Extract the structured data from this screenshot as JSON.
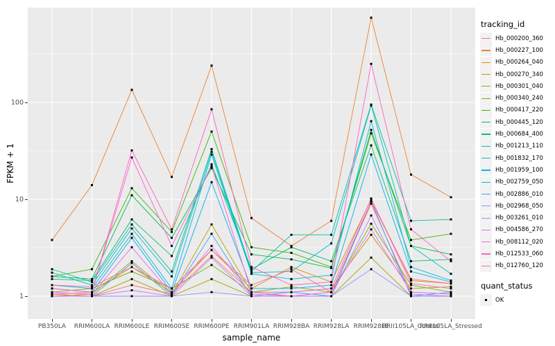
{
  "figure": {
    "background": "#FFFFFF",
    "panel_background": "#EBEBEB",
    "grid_color": "#FFFFFF",
    "tick_label_color": "#4D4D4D",
    "point_color": "#000000",
    "point_shape": "filled-square"
  },
  "legend": {
    "tracking_title": "tracking_id",
    "quant_title": "quant_status",
    "quant_items": [
      {
        "label": "OK",
        "marker": "black-square"
      }
    ]
  },
  "chart_data": {
    "type": "line",
    "title": "",
    "xlabel": "sample_name",
    "ylabel": "FPKM + 1",
    "y_scale": "log10",
    "y_ticks": [
      1,
      10,
      100
    ],
    "ylim": [
      0.59,
      930
    ],
    "grid": true,
    "legend_position": "right",
    "categories": [
      "PB350LA",
      "RRIM600LA",
      "RRIM600LE",
      "RRIM600SE",
      "RRIM600PE",
      "RRIM901LA",
      "RRIM928BA",
      "RRIM928LA",
      "RRIM928LE",
      "RRII105LA_Control",
      "RRII105LA_Stressed"
    ],
    "series": [
      {
        "name": "Hb_000200_360",
        "color": "#F8766D",
        "values": [
          1.05,
          1.0,
          1.3,
          1.05,
          2.6,
          1.1,
          1.0,
          1.1,
          9.0,
          1.1,
          1.05
        ]
      },
      {
        "name": "Hb_000227_100",
        "color": "#EA8331",
        "values": [
          3.8,
          14,
          135,
          17,
          240,
          6.4,
          3.3,
          6.0,
          750,
          18,
          10.5
        ]
      },
      {
        "name": "Hb_000264_040",
        "color": "#D89000",
        "values": [
          1.2,
          1.1,
          2.0,
          1.1,
          3.0,
          1.2,
          2.0,
          1.4,
          10,
          1.45,
          1.35
        ]
      },
      {
        "name": "Hb_000270_340",
        "color": "#C09B00",
        "values": [
          1.0,
          1.05,
          2.3,
          1.05,
          5.5,
          1.1,
          1.1,
          1.2,
          4.3,
          1.2,
          1.25
        ]
      },
      {
        "name": "Hb_000301_040",
        "color": "#A3A500",
        "values": [
          1.0,
          1.0,
          1.5,
          1.0,
          1.5,
          1.0,
          1.0,
          1.0,
          2.5,
          1.0,
          1.0
        ]
      },
      {
        "name": "Hb_000340_240",
        "color": "#7CAE00",
        "values": [
          1.1,
          1.2,
          1.8,
          1.2,
          2.1,
          1.1,
          1.25,
          1.1,
          5.6,
          1.3,
          1.1
        ]
      },
      {
        "name": "Hb_000417_220",
        "color": "#39B600",
        "values": [
          1.6,
          1.9,
          13,
          4.6,
          50,
          3.2,
          2.8,
          2.0,
          48,
          3.8,
          4.4
        ]
      },
      {
        "name": "Hb_000445_120",
        "color": "#00BB4E",
        "values": [
          1.6,
          1.5,
          11,
          4.0,
          21,
          2.7,
          2.4,
          1.95,
          52,
          3.3,
          2.7
        ]
      },
      {
        "name": "Hb_000684_400",
        "color": "#00BF7D",
        "values": [
          1.5,
          1.45,
          6.2,
          2.6,
          23,
          1.9,
          3.2,
          2.3,
          36,
          2.3,
          2.4
        ]
      },
      {
        "name": "Hb_001213_110",
        "color": "#00C1A3",
        "values": [
          1.9,
          1.4,
          5.5,
          1.8,
          33,
          1.8,
          4.3,
          4.3,
          95,
          6.0,
          6.2
        ]
      },
      {
        "name": "Hb_001832_170",
        "color": "#00BFC4",
        "values": [
          1.75,
          1.3,
          5.0,
          1.6,
          31,
          1.75,
          1.8,
          3.5,
          93,
          3.3,
          1.7
        ]
      },
      {
        "name": "Hb_001959_100",
        "color": "#00BAE0",
        "values": [
          1.3,
          1.2,
          4.4,
          1.2,
          29,
          1.7,
          1.5,
          1.65,
          64,
          2.0,
          1.45
        ]
      },
      {
        "name": "Hb_002759_050",
        "color": "#00B0F6",
        "values": [
          1.2,
          1.1,
          4.0,
          1.1,
          15,
          1.2,
          1.2,
          1.3,
          29,
          1.8,
          1.4
        ]
      },
      {
        "name": "Hb_002886_010",
        "color": "#35A2FF",
        "values": [
          1.0,
          1.0,
          2.2,
          1.0,
          4.4,
          1.0,
          1.1,
          1.0,
          9.5,
          1.0,
          1.1
        ]
      },
      {
        "name": "Hb_002968_050",
        "color": "#9590FF",
        "values": [
          1.0,
          1.0,
          1.0,
          1.0,
          1.1,
          1.0,
          1.0,
          1.0,
          1.9,
          1.0,
          1.0
        ]
      },
      {
        "name": "Hb_003261_010",
        "color": "#C77CFF",
        "values": [
          1.0,
          1.0,
          1.15,
          1.0,
          2.5,
          1.0,
          1.0,
          1.0,
          6.8,
          1.05,
          1.0
        ]
      },
      {
        "name": "Hb_004586_270",
        "color": "#E76BF3",
        "values": [
          1.1,
          1.05,
          3.2,
          1.05,
          3.3,
          1.05,
          1.0,
          1.1,
          4.9,
          1.1,
          1.05
        ]
      },
      {
        "name": "Hb_008112_020",
        "color": "#FA62DB",
        "values": [
          1.2,
          1.1,
          27,
          3.3,
          22,
          1.1,
          1.1,
          1.2,
          10.2,
          1.35,
          1.2
        ]
      },
      {
        "name": "Hb_012533_060",
        "color": "#FF62BC",
        "values": [
          1.05,
          1.1,
          32,
          4.9,
          85,
          2.0,
          1.3,
          1.4,
          250,
          4.9,
          2.3
        ]
      },
      {
        "name": "Hb_012760_120",
        "color": "#FF6A98",
        "values": [
          1.3,
          1.25,
          2.0,
          1.2,
          3.0,
          1.3,
          1.9,
          1.1,
          9.5,
          1.5,
          1.35
        ]
      }
    ]
  }
}
